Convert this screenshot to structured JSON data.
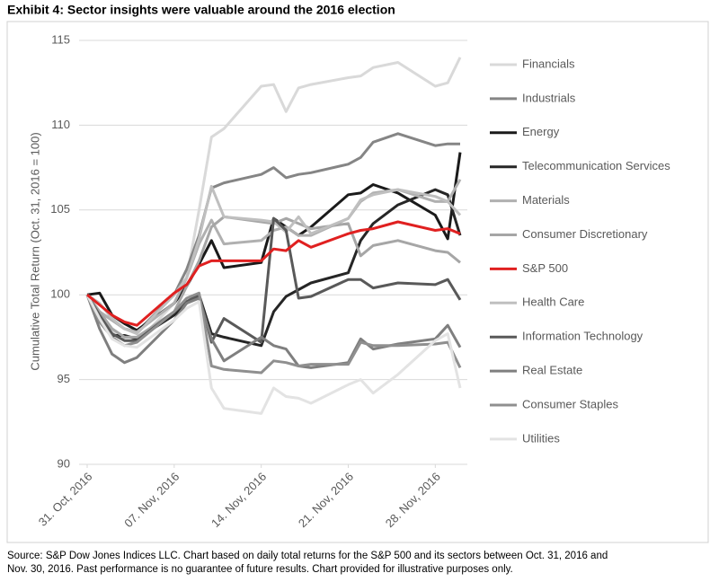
{
  "chart_data": {
    "type": "line",
    "title": "Exhibit 4: Sector insights were valuable around the 2016 election",
    "y_label": "Cumulative Total Return (Oct. 31, 2016 = 100)",
    "footnote": [
      "Source: S&P Dow Jones Indices LLC. Chart based on daily total returns for the S&P 500 and its sectors between Oct. 31, 2016 and",
      "Nov. 30, 2016. Past performance is no guarantee of future results. Chart provided for illustrative purposes only."
    ],
    "x": [
      "2016-10-31",
      "2016-11-01",
      "2016-11-02",
      "2016-11-03",
      "2016-11-04",
      "2016-11-07",
      "2016-11-08",
      "2016-11-09",
      "2016-11-10",
      "2016-11-11",
      "2016-11-14",
      "2016-11-15",
      "2016-11-16",
      "2016-11-17",
      "2016-11-18",
      "2016-11-21",
      "2016-11-22",
      "2016-11-23",
      "2016-11-25",
      "2016-11-28",
      "2016-11-29",
      "2016-11-30"
    ],
    "xlim": [
      "2016-10-31",
      "2016-11-30"
    ],
    "xticks": [
      {
        "value": "2016-10-31",
        "label": "31. Oct, 2016"
      },
      {
        "value": "2016-11-07",
        "label": "07. Nov, 2016"
      },
      {
        "value": "2016-11-14",
        "label": "14. Nov, 2016"
      },
      {
        "value": "2016-11-21",
        "label": "21. Nov, 2016"
      },
      {
        "value": "2016-11-28",
        "label": "28. Nov, 2016"
      }
    ],
    "ylim": [
      90,
      115
    ],
    "yticks": [
      90,
      95,
      100,
      105,
      110,
      115
    ],
    "grid": true,
    "legend": "right",
    "series": [
      {
        "name": "Financials",
        "color": "#d9d9d9",
        "values": [
          100,
          99,
          97.8,
          97.3,
          97.2,
          99.5,
          101,
          105,
          109.3,
          109.8,
          112.3,
          112.4,
          110.8,
          112.2,
          112.4,
          112.8,
          112.9,
          113.4,
          113.7,
          112.3,
          112.5,
          114
        ]
      },
      {
        "name": "Industrials",
        "color": "#858585",
        "values": [
          100,
          99,
          98.5,
          98,
          97.8,
          100,
          101.5,
          103.5,
          106.3,
          106.6,
          107.1,
          107.5,
          106.9,
          107.1,
          107.2,
          107.7,
          108.1,
          109,
          109.5,
          108.8,
          108.9,
          108.9
        ]
      },
      {
        "name": "Energy",
        "color": "#1a1a1a",
        "values": [
          100,
          100.1,
          98.8,
          98.3,
          97.9,
          99.5,
          100.5,
          101.8,
          103.2,
          101.6,
          101.9,
          104.5,
          104,
          103.5,
          104,
          105.9,
          106,
          106.5,
          106,
          104.7,
          103.3,
          108.4
        ]
      },
      {
        "name": "Telecommunication Services",
        "color": "#262626",
        "values": [
          100,
          98.8,
          97.6,
          97.6,
          97.4,
          98.8,
          99.5,
          100,
          97.7,
          97.5,
          97,
          99,
          99.9,
          100.3,
          100.7,
          101.3,
          103.2,
          104.2,
          105.3,
          106.2,
          105.9,
          103.5
        ]
      },
      {
        "name": "Materials",
        "color": "#b0b0b0",
        "values": [
          100,
          99,
          98.5,
          98,
          97.8,
          99.5,
          101,
          103,
          104.4,
          103,
          103.2,
          103.8,
          104,
          103.5,
          103.5,
          104.5,
          105.5,
          106,
          106.2,
          105.5,
          105.5,
          106.8
        ]
      },
      {
        "name": "Consumer Discretionary",
        "color": "#a6a6a6",
        "values": [
          100,
          99,
          98,
          97.5,
          97.5,
          99,
          100.5,
          102,
          104,
          104.6,
          104.3,
          104.2,
          104.5,
          104.2,
          103.9,
          104.2,
          102.3,
          102.9,
          103.2,
          102.6,
          102.5,
          101.9
        ]
      },
      {
        "name": "S&P 500",
        "color": "#e02020",
        "values": [
          100,
          99.4,
          98.8,
          98.4,
          98.2,
          100.1,
          100.6,
          101.7,
          102,
          102,
          102,
          102.7,
          102.6,
          103.2,
          102.8,
          103.6,
          103.8,
          103.9,
          104.3,
          103.8,
          103.9,
          103.6
        ]
      },
      {
        "name": "Health Care",
        "color": "#bfbfbf",
        "values": [
          100,
          99.5,
          98.6,
          98,
          97.7,
          100,
          101,
          103.3,
          106.4,
          104.6,
          104.4,
          104.3,
          103.7,
          104.6,
          103.6,
          104.5,
          105.6,
          105.9,
          106.2,
          105.8,
          105.5,
          104.7
        ]
      },
      {
        "name": "Information Technology",
        "color": "#595959",
        "values": [
          100,
          98.8,
          97.7,
          97.3,
          97.3,
          99,
          99.6,
          100,
          97.2,
          98.6,
          97.2,
          104.5,
          103.8,
          99.8,
          99.9,
          100.9,
          100.9,
          100.4,
          100.7,
          100.6,
          100.9,
          99.7
        ]
      },
      {
        "name": "Real Estate",
        "color": "#7f7f7f",
        "values": [
          100,
          98,
          96.5,
          96,
          96.3,
          98.5,
          99.5,
          99.8,
          97.4,
          96.1,
          97.5,
          97,
          96.8,
          95.8,
          95.7,
          96,
          97.4,
          96.8,
          97.1,
          97.4,
          98.2,
          96.9
        ]
      },
      {
        "name": "Consumer Staples",
        "color": "#8f8f8f",
        "values": [
          100,
          98.4,
          97.5,
          97,
          97.2,
          99,
          99.8,
          100.1,
          95.8,
          95.6,
          95.4,
          96.1,
          96,
          95.8,
          95.9,
          95.9,
          97.2,
          97,
          97,
          97.1,
          97.2,
          95.7
        ]
      },
      {
        "name": "Utilities",
        "color": "#e3e3e3",
        "values": [
          100,
          98.6,
          97.4,
          97,
          96.9,
          98.5,
          99.2,
          99.6,
          94.5,
          93.3,
          93,
          94.5,
          94,
          93.9,
          93.6,
          94.7,
          95,
          94.2,
          95.3,
          97.3,
          97.7,
          94.5
        ]
      }
    ]
  }
}
